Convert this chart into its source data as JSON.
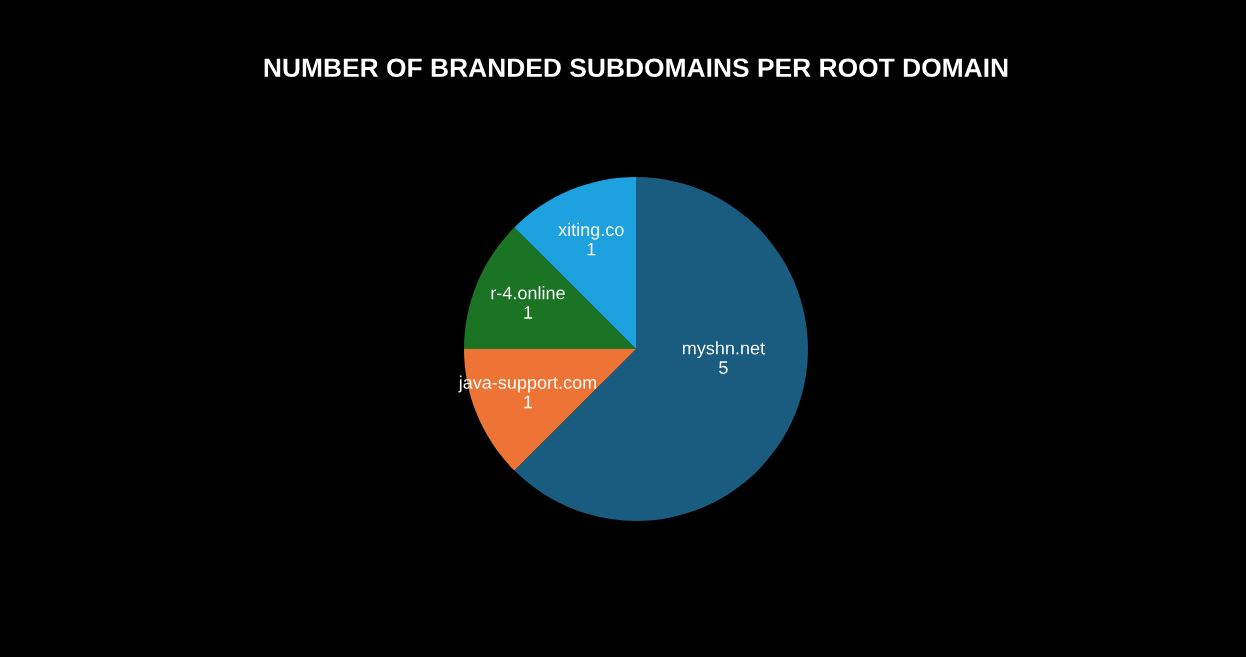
{
  "chart_data": {
    "type": "pie",
    "title": "NUMBER OF BRANDED SUBDOMAINS PER ROOT DOMAIN",
    "categories": [
      "myshn.net",
      "java-support.com",
      "r-4.online",
      "xiting.co"
    ],
    "values": [
      5,
      1,
      1,
      1
    ],
    "colors": [
      "#1a5b80",
      "#ee7435",
      "#1b7424",
      "#1da1df"
    ],
    "data_labels": true,
    "legend": false
  }
}
